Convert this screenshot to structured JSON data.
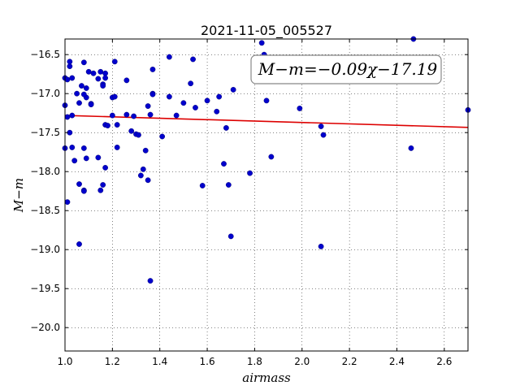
{
  "chart_data": {
    "type": "scatter",
    "title": "2021-11-05_005527",
    "xlabel": "airmass",
    "ylabel": "M−m",
    "xlim": [
      1.0,
      2.7
    ],
    "ylim": [
      -20.3,
      -16.3
    ],
    "y_inverted": true,
    "grid": true,
    "xticks": [
      1.0,
      1.2,
      1.4,
      1.6,
      1.8,
      2.0,
      2.2,
      2.4,
      2.6
    ],
    "xtick_labels": [
      "1.0",
      "1.2",
      "1.4",
      "1.6",
      "1.8",
      "2.0",
      "2.2",
      "2.4",
      "2.6"
    ],
    "yticks": [
      -16.5,
      -17.0,
      -17.5,
      -18.0,
      -18.5,
      -19.0,
      -19.5,
      -20.0
    ],
    "ytick_labels": [
      "−16.5",
      "−17.0",
      "−17.5",
      "−18.0",
      "−18.5",
      "−19.0",
      "−19.5",
      "−20.0"
    ],
    "annotation": "M−m=−0.09χ−17.19",
    "series": [
      {
        "kind": "points",
        "color": "#0000cc",
        "x": [
          1.0,
          1.0,
          1.01,
          1.02,
          1.02,
          1.03,
          1.03,
          1.01,
          1.02,
          1.0,
          1.03,
          1.01,
          1.05,
          1.06,
          1.08,
          1.07,
          1.09,
          1.1,
          1.09,
          1.08,
          1.11,
          1.11,
          1.12,
          1.14,
          1.15,
          1.16,
          1.17,
          1.17,
          1.16,
          1.17,
          1.18,
          1.06,
          1.08,
          1.09,
          1.08,
          1.04,
          1.06,
          1.08,
          1.14,
          1.17,
          1.15,
          1.16,
          1.2,
          1.21,
          1.21,
          1.22,
          1.2,
          1.22,
          1.26,
          1.26,
          1.28,
          1.3,
          1.32,
          1.33,
          1.35,
          1.36,
          1.37,
          1.37,
          1.41,
          1.44,
          1.44,
          1.5,
          1.53,
          1.54,
          1.55,
          1.47,
          1.34,
          1.36,
          1.37,
          1.31,
          1.29,
          1.35,
          1.58,
          1.6,
          1.64,
          1.65,
          1.68,
          1.71,
          1.67,
          1.69,
          1.7,
          1.78,
          1.83,
          1.84,
          1.87,
          1.85,
          1.99,
          2.08,
          2.09,
          2.08,
          2.46,
          2.47,
          2.7
        ],
        "y": [
          -16.8,
          -17.15,
          -16.82,
          -16.65,
          -16.59,
          -16.8,
          -17.28,
          -17.3,
          -17.5,
          -17.7,
          -17.69,
          -18.39,
          -17.0,
          -17.12,
          -16.6,
          -16.9,
          -16.93,
          -16.72,
          -17.05,
          -17.01,
          -17.13,
          -17.14,
          -16.74,
          -16.81,
          -16.72,
          -16.88,
          -16.74,
          -16.8,
          -16.9,
          -17.4,
          -17.41,
          -18.16,
          -17.7,
          -17.83,
          -18.24,
          -17.86,
          -18.93,
          -18.25,
          -17.82,
          -17.95,
          -18.24,
          -18.17,
          -17.05,
          -16.59,
          -17.04,
          -17.4,
          -17.28,
          -17.69,
          -16.83,
          -17.27,
          -17.48,
          -17.52,
          -18.05,
          -17.97,
          -17.16,
          -17.27,
          -17.0,
          -16.69,
          -17.55,
          -17.04,
          -16.53,
          -17.12,
          -16.87,
          -16.56,
          -17.18,
          -17.28,
          -17.73,
          -19.4,
          -17.01,
          -17.53,
          -17.29,
          -18.11,
          -18.18,
          -17.09,
          -17.23,
          -17.04,
          -17.44,
          -16.95,
          -17.9,
          -18.17,
          -18.83,
          -18.02,
          -16.35,
          -16.5,
          -17.81,
          -17.09,
          -17.19,
          -18.96,
          -17.53,
          -17.42,
          -17.7,
          -16.3,
          -17.21
        ]
      },
      {
        "kind": "fit_line",
        "color": "#dd0000",
        "x": [
          1.0,
          2.7
        ],
        "y": [
          -17.28,
          -17.433
        ]
      }
    ]
  }
}
